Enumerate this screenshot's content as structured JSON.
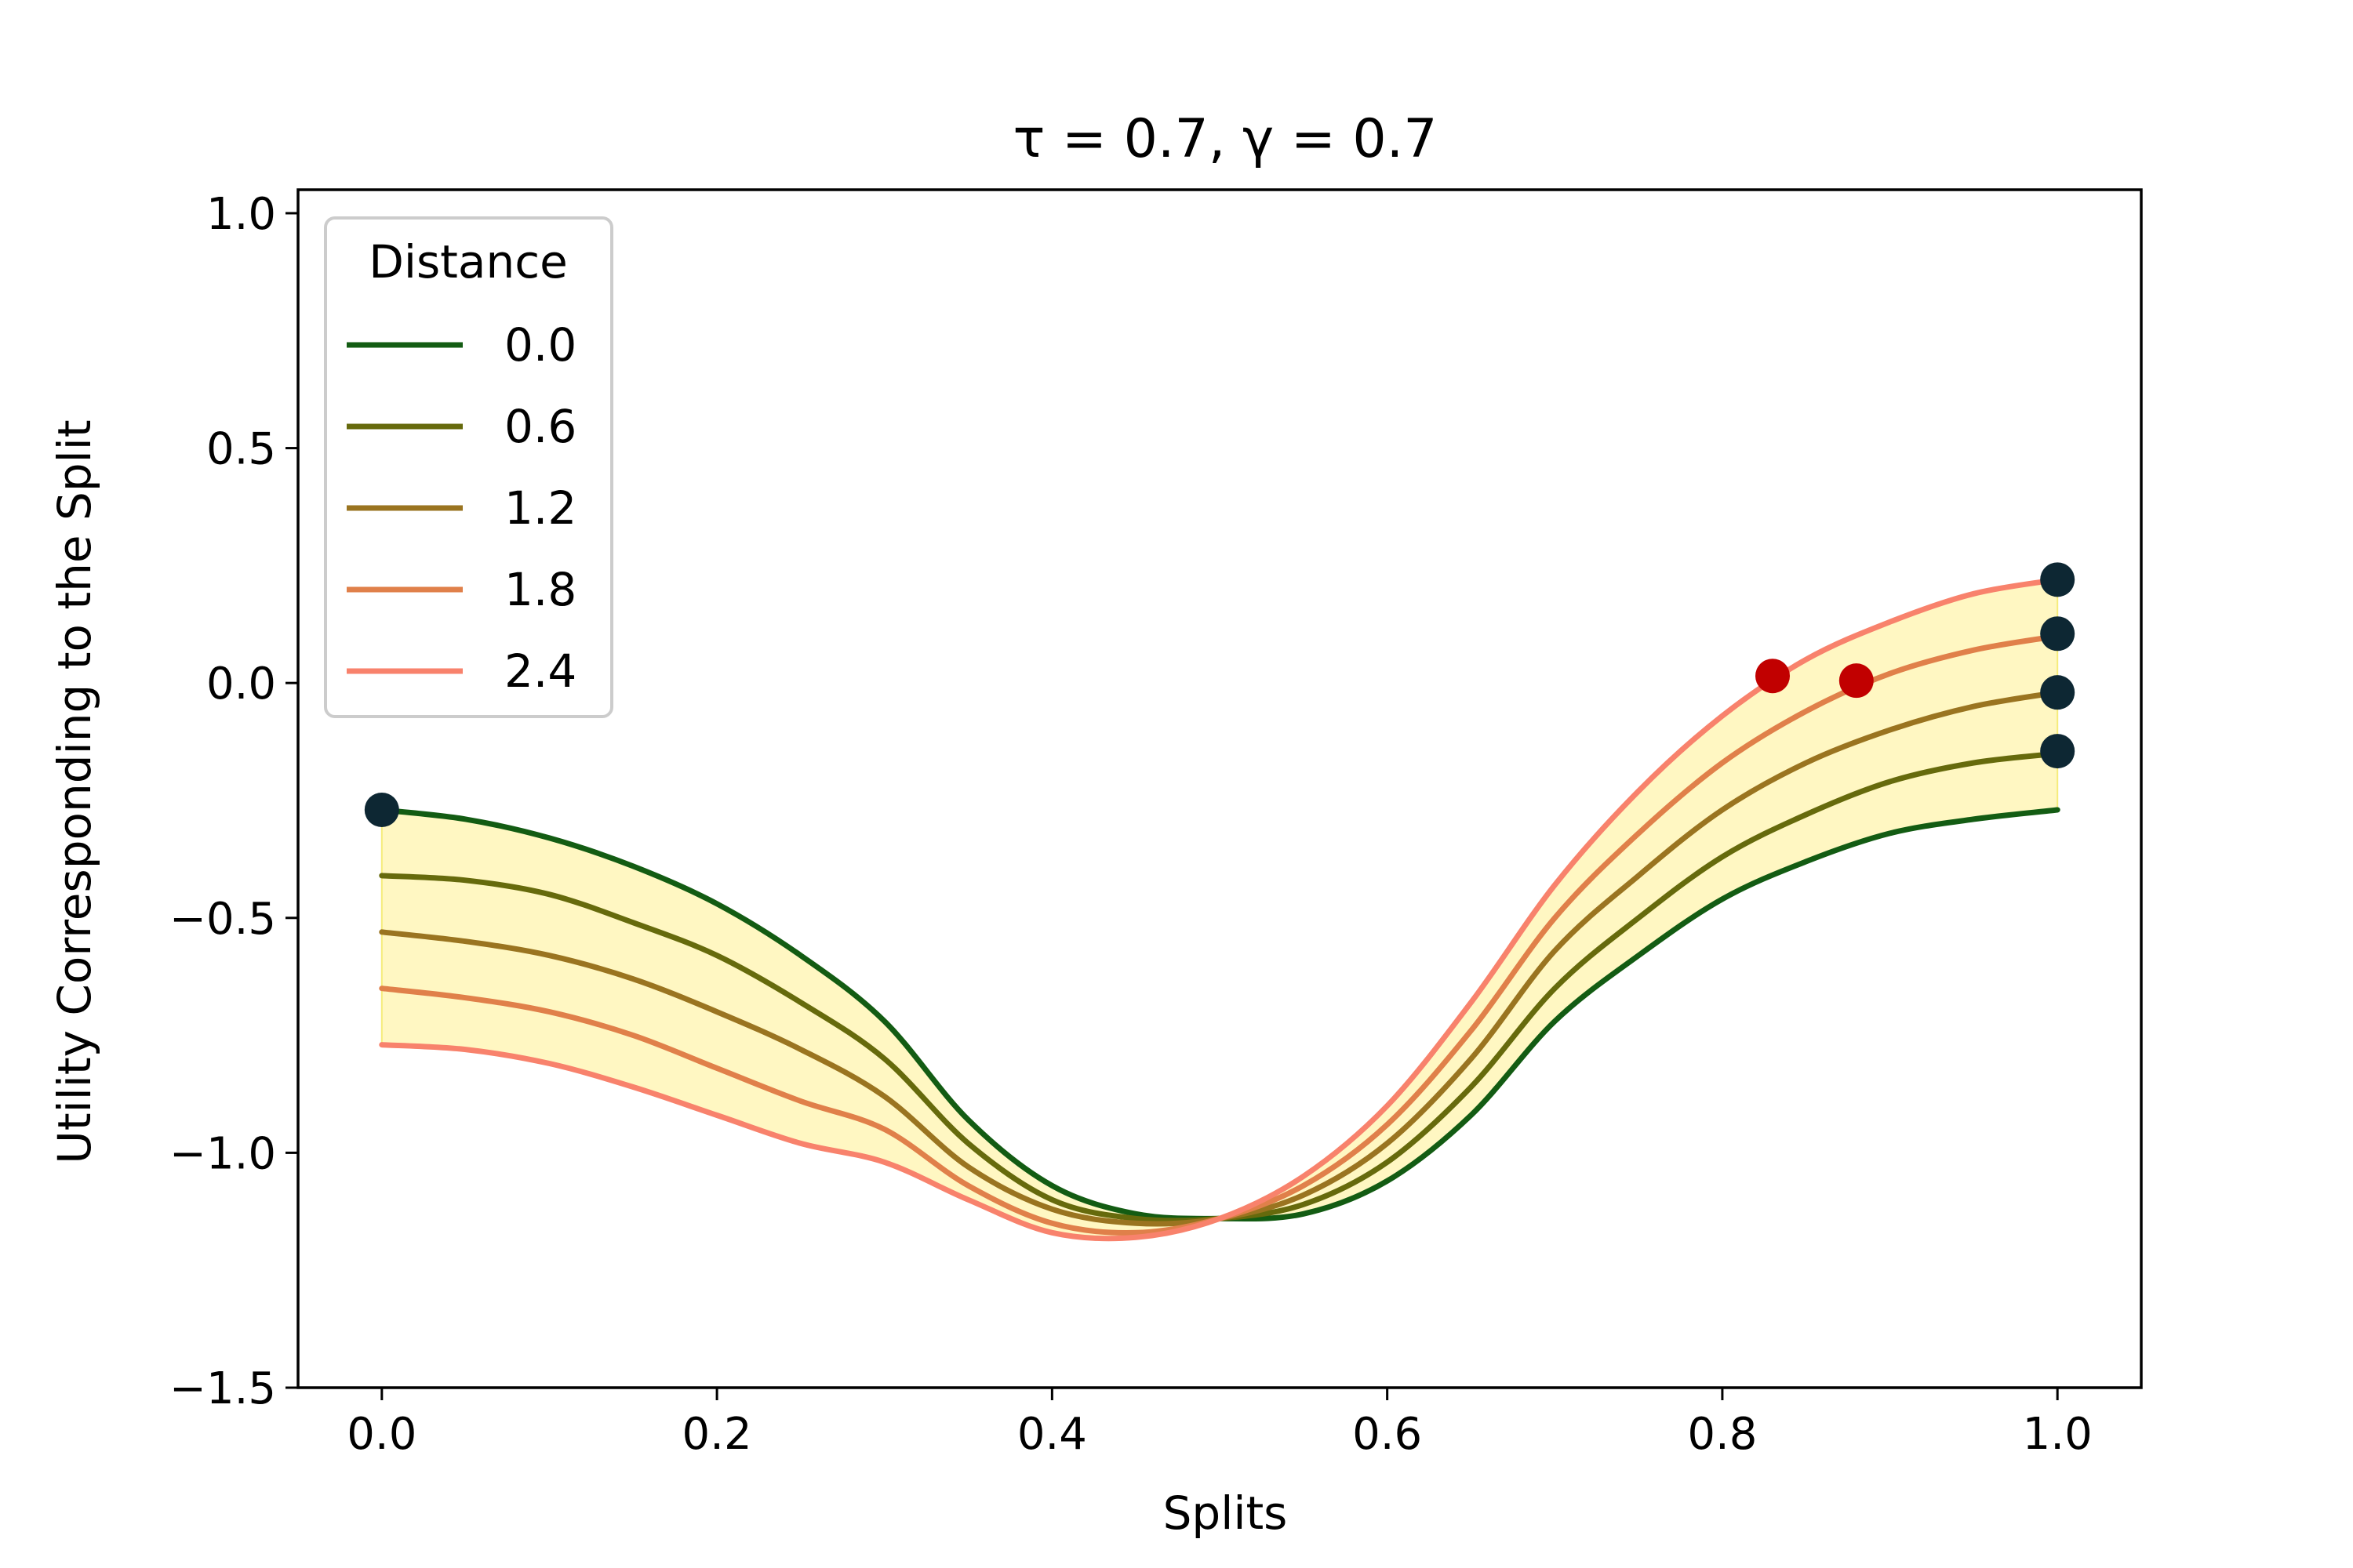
{
  "chart_data": {
    "type": "line",
    "title": "τ = 0.7, γ = 0.7",
    "xlabel": "Splits",
    "ylabel": "Utility Corresponding to the Split",
    "xlim": [
      -0.05,
      1.05
    ],
    "ylim": [
      -1.5,
      1.05
    ],
    "xticks": [
      0.0,
      0.2,
      0.4,
      0.6,
      0.8,
      1.0
    ],
    "xtick_labels": [
      "0.0",
      "0.2",
      "0.4",
      "0.6",
      "0.8",
      "1.0"
    ],
    "yticks": [
      -1.5,
      -1.0,
      -0.5,
      0.0,
      0.5,
      1.0
    ],
    "ytick_labels": [
      "−1.5",
      "−1.0",
      "−0.5",
      "0.0",
      "0.5",
      "1.0"
    ],
    "grid": false,
    "legend": {
      "title": "Distance",
      "position": "top-left"
    },
    "band": {
      "color": "#fff7c2",
      "edge": "#f5eb7a",
      "between": [
        "0.0",
        "2.4"
      ]
    },
    "x": [
      0.0,
      0.05,
      0.1,
      0.15,
      0.2,
      0.25,
      0.3,
      0.35,
      0.4,
      0.45,
      0.5,
      0.55,
      0.6,
      0.65,
      0.7,
      0.75,
      0.8,
      0.85,
      0.9,
      0.95,
      1.0
    ],
    "series": [
      {
        "name": "0.0",
        "color": "#135c13",
        "values": [
          -0.27,
          -0.29,
          -0.33,
          -0.39,
          -0.47,
          -0.58,
          -0.72,
          -0.93,
          -1.07,
          -1.13,
          -1.14,
          -1.13,
          -1.06,
          -0.92,
          -0.72,
          -0.58,
          -0.46,
          -0.38,
          -0.32,
          -0.29,
          -0.27
        ]
      },
      {
        "name": "0.6",
        "color": "#666a0c",
        "values": [
          -0.41,
          -0.42,
          -0.45,
          -0.51,
          -0.58,
          -0.68,
          -0.8,
          -0.98,
          -1.1,
          -1.14,
          -1.14,
          -1.11,
          -1.02,
          -0.86,
          -0.65,
          -0.5,
          -0.37,
          -0.28,
          -0.21,
          -0.17,
          -0.15
        ]
      },
      {
        "name": "1.2",
        "color": "#9a7420",
        "values": [
          -0.53,
          -0.55,
          -0.58,
          -0.63,
          -0.7,
          -0.78,
          -0.88,
          -1.03,
          -1.12,
          -1.15,
          -1.14,
          -1.09,
          -0.98,
          -0.8,
          -0.57,
          -0.41,
          -0.27,
          -0.17,
          -0.1,
          -0.05,
          -0.02
        ]
      },
      {
        "name": "1.8",
        "color": "#e0804a",
        "values": [
          -0.65,
          -0.67,
          -0.7,
          -0.75,
          -0.82,
          -0.89,
          -0.95,
          -1.07,
          -1.15,
          -1.17,
          -1.14,
          -1.07,
          -0.94,
          -0.74,
          -0.5,
          -0.32,
          -0.17,
          -0.06,
          0.02,
          0.07,
          0.1
        ]
      },
      {
        "name": "2.4",
        "color": "#f8826c",
        "values": [
          -0.77,
          -0.78,
          -0.81,
          -0.86,
          -0.92,
          -0.98,
          -1.02,
          -1.1,
          -1.17,
          -1.18,
          -1.14,
          -1.05,
          -0.9,
          -0.68,
          -0.43,
          -0.23,
          -0.07,
          0.05,
          0.13,
          0.19,
          0.22
        ]
      }
    ],
    "markers": [
      {
        "label": "start",
        "x": 0.0,
        "y": -0.27,
        "color": "#0d2733"
      },
      {
        "label": "end 2.4",
        "x": 1.0,
        "y": 0.22,
        "color": "#0d2733"
      },
      {
        "label": "end 1.8",
        "x": 1.0,
        "y": 0.105,
        "color": "#0d2733"
      },
      {
        "label": "end 1.2",
        "x": 1.0,
        "y": -0.02,
        "color": "#0d2733"
      },
      {
        "label": "end 0.6",
        "x": 1.0,
        "y": -0.145,
        "color": "#0d2733"
      },
      {
        "label": "red 2.4",
        "x": 0.83,
        "y": 0.015,
        "color": "#c10000"
      },
      {
        "label": "red 1.8",
        "x": 0.88,
        "y": 0.005,
        "color": "#c10000"
      }
    ]
  }
}
